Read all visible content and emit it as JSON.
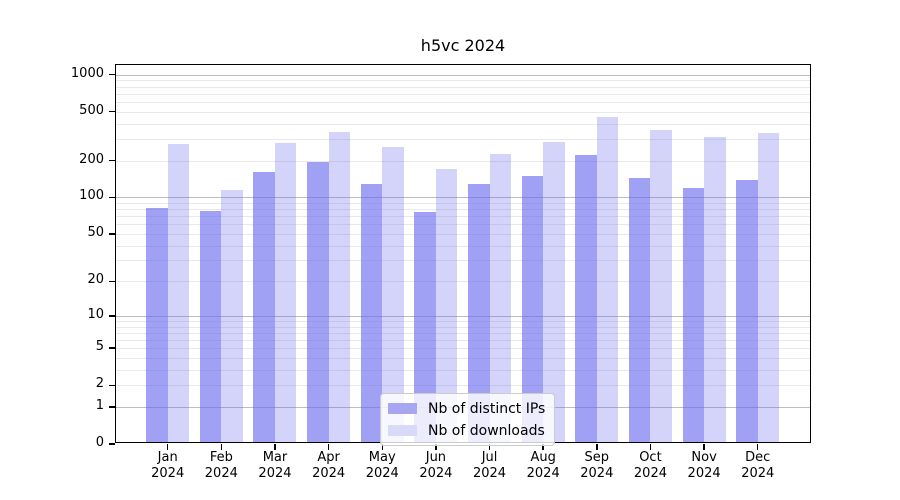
{
  "chart_data": {
    "type": "bar",
    "title": "h5vc 2024",
    "months": [
      "Jan",
      "Feb",
      "Mar",
      "Apr",
      "May",
      "Jun",
      "Jul",
      "Aug",
      "Sep",
      "Oct",
      "Nov",
      "Dec"
    ],
    "year": "2024",
    "series": [
      {
        "name": "Nb of distinct IPs",
        "values": [
          78,
          75,
          156,
          187,
          125,
          73,
          123,
          143,
          212,
          140,
          115,
          134
        ],
        "fill": "rgba(101,101,238,0.62)",
        "legend_color": "#a6a6f2"
      },
      {
        "name": "Nb of downloads",
        "values": [
          262,
          111,
          266,
          330,
          250,
          165,
          218,
          273,
          440,
          343,
          302,
          323
        ],
        "fill": "rgba(101,101,238,0.28)",
        "legend_color": "#d9d9f8"
      }
    ],
    "yscale": "log1p",
    "ylim": [
      0,
      1200
    ],
    "yticks": [
      0,
      1,
      2,
      5,
      10,
      20,
      50,
      100,
      200,
      500,
      1000
    ],
    "grid": {
      "major": [
        1,
        10,
        100,
        1000
      ],
      "minor": [
        2,
        3,
        4,
        5,
        6,
        7,
        8,
        9,
        20,
        30,
        40,
        50,
        60,
        70,
        80,
        90,
        200,
        300,
        400,
        500,
        600,
        700,
        800,
        900
      ],
      "major_color": "#bdbdbd",
      "minor_color": "#e9e9e9"
    },
    "legend_position": "inside-lower-center"
  }
}
